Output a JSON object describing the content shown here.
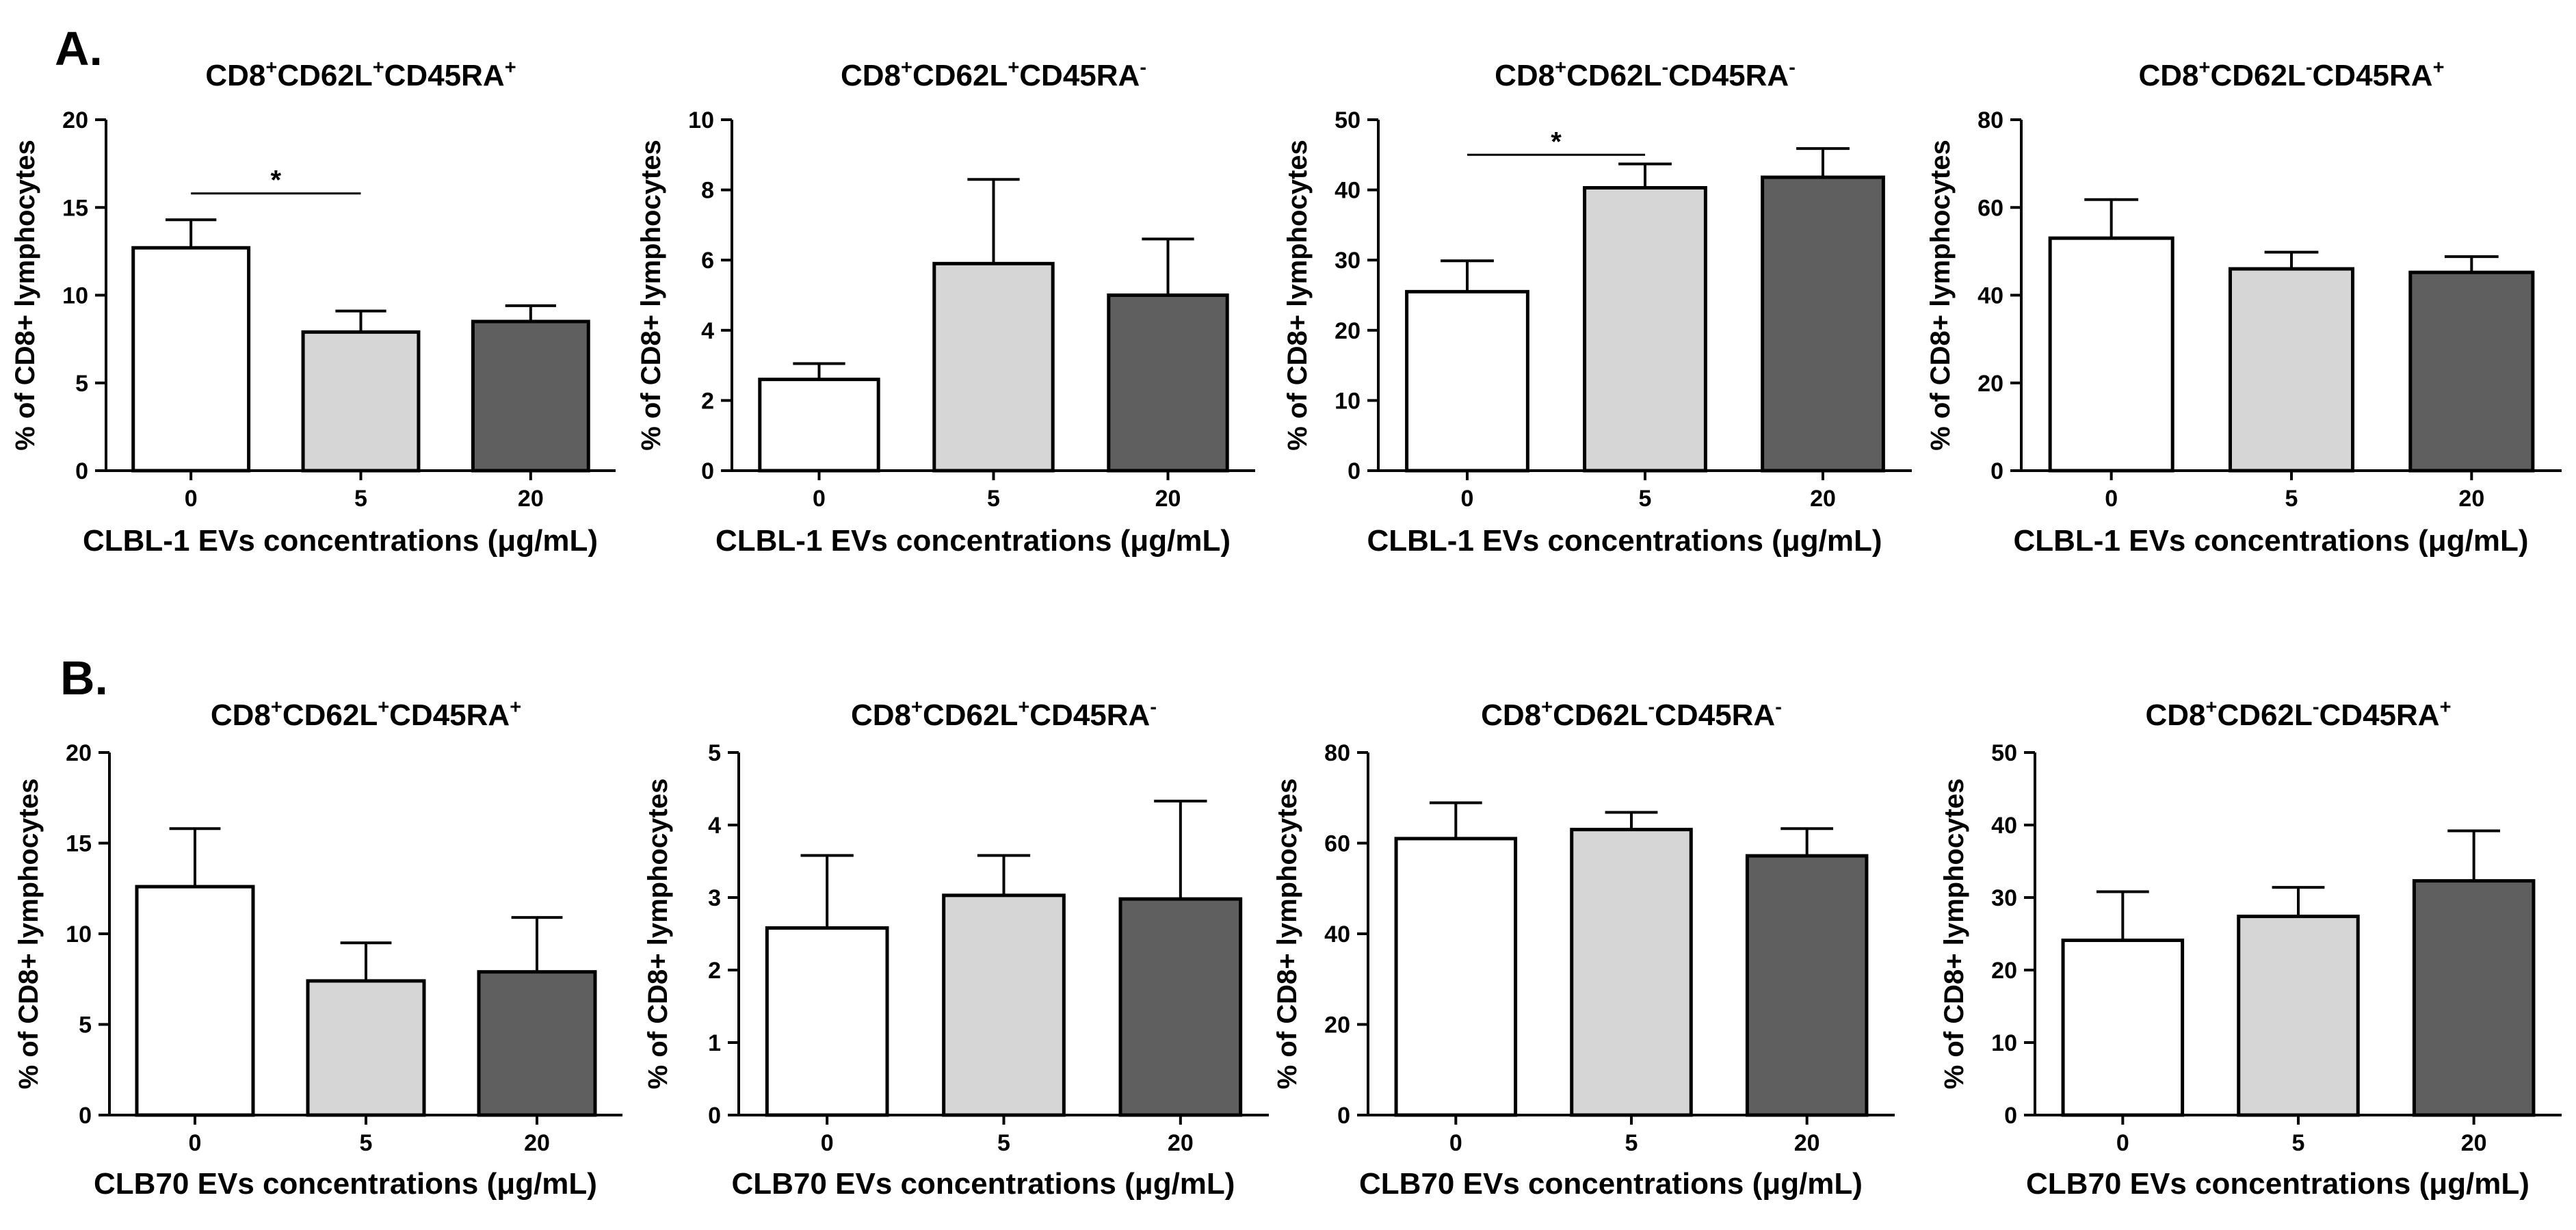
{
  "figure": {
    "panel_labels": [
      "A.",
      "B."
    ],
    "colors": {
      "bar_0": "#ffffff",
      "bar_5": "#d6d6d6",
      "bar_20": "#5f5f5f",
      "ink": "#000000"
    }
  },
  "chart_data": [
    {
      "type": "bar",
      "row": "A",
      "col": 0,
      "title_parts": [
        [
          "CD8",
          "normal"
        ],
        [
          "+",
          "sup"
        ],
        [
          "CD62L",
          "normal"
        ],
        [
          "+",
          "sup"
        ],
        [
          "CD45RA",
          "normal"
        ],
        [
          "+",
          "sup"
        ]
      ],
      "categories": [
        "0",
        "5",
        "20"
      ],
      "values": [
        12.7,
        7.9,
        8.5
      ],
      "errors": [
        1.6,
        1.2,
        0.9
      ],
      "ylim": [
        0,
        20
      ],
      "yticks": [
        0,
        5,
        10,
        15,
        20
      ],
      "ylabel": "% of CD8+ lymphocytes",
      "xlabel": "CLBL-1 EVs concentrations (μg/mL)",
      "significance": [
        {
          "from": 0,
          "to": 1,
          "y": 15.8,
          "label": "*"
        }
      ]
    },
    {
      "type": "bar",
      "row": "A",
      "col": 1,
      "title_parts": [
        [
          "CD8",
          "normal"
        ],
        [
          "+",
          "sup"
        ],
        [
          "CD62L",
          "normal"
        ],
        [
          "+",
          "sup"
        ],
        [
          "CD45RA",
          "normal"
        ],
        [
          "-",
          "sup"
        ]
      ],
      "categories": [
        "0",
        "5",
        "20"
      ],
      "values": [
        2.6,
        5.9,
        5.0
      ],
      "errors": [
        0.45,
        2.4,
        1.6
      ],
      "ylim": [
        0,
        10
      ],
      "yticks": [
        0,
        2,
        4,
        6,
        8,
        10
      ],
      "ylabel": "% of CD8+ lymphocytes",
      "xlabel": "CLBL-1 EVs concentrations (μg/mL)",
      "significance": []
    },
    {
      "type": "bar",
      "row": "A",
      "col": 2,
      "title_parts": [
        [
          "CD8",
          "normal"
        ],
        [
          "+",
          "sup"
        ],
        [
          "CD62L",
          "normal"
        ],
        [
          "-",
          "sup"
        ],
        [
          "CD45RA",
          "normal"
        ],
        [
          "-",
          "sup"
        ]
      ],
      "categories": [
        "0",
        "5",
        "20"
      ],
      "values": [
        25.5,
        40.3,
        41.8
      ],
      "errors": [
        4.4,
        3.4,
        4.1
      ],
      "ylim": [
        0,
        50
      ],
      "yticks": [
        0,
        10,
        20,
        30,
        40,
        50
      ],
      "ylabel": "% of CD8+ lymphocytes",
      "xlabel": "CLBL-1 EVs concentrations (μg/mL)",
      "significance": [
        {
          "from": 0,
          "to": 1,
          "y": 45,
          "label": "*"
        }
      ]
    },
    {
      "type": "bar",
      "row": "A",
      "col": 3,
      "title_parts": [
        [
          "CD8",
          "normal"
        ],
        [
          "+",
          "sup"
        ],
        [
          "CD62L",
          "normal"
        ],
        [
          "-",
          "sup"
        ],
        [
          "CD45RA",
          "normal"
        ],
        [
          "+",
          "sup"
        ]
      ],
      "categories": [
        "0",
        "5",
        "20"
      ],
      "values": [
        53,
        46,
        45.2
      ],
      "errors": [
        8.8,
        3.8,
        3.6
      ],
      "ylim": [
        0,
        80
      ],
      "yticks": [
        0,
        20,
        40,
        60,
        80
      ],
      "ylabel": "% of CD8+ lymphocytes",
      "xlabel": "CLBL-1 EVs concentrations (μg/mL)",
      "significance": []
    },
    {
      "type": "bar",
      "row": "B",
      "col": 0,
      "title_parts": [
        [
          "CD8",
          "normal"
        ],
        [
          "+",
          "sup"
        ],
        [
          "CD62L",
          "normal"
        ],
        [
          "+",
          "sup"
        ],
        [
          "CD45RA",
          "normal"
        ],
        [
          "+",
          "sup"
        ]
      ],
      "categories": [
        "0",
        "5",
        "20"
      ],
      "values": [
        12.6,
        7.4,
        7.9
      ],
      "errors": [
        3.2,
        2.1,
        3.0
      ],
      "ylim": [
        0,
        20
      ],
      "yticks": [
        0,
        5,
        10,
        15,
        20
      ],
      "ylabel": "% of CD8+ lymphocytes",
      "xlabel": "CLB70 EVs concentrations (μg/mL)",
      "significance": []
    },
    {
      "type": "bar",
      "row": "B",
      "col": 1,
      "title_parts": [
        [
          "CD8",
          "normal"
        ],
        [
          "+",
          "sup"
        ],
        [
          "CD62L",
          "normal"
        ],
        [
          "+",
          "sup"
        ],
        [
          "CD45RA",
          "normal"
        ],
        [
          "-",
          "sup"
        ]
      ],
      "categories": [
        "0",
        "5",
        "20"
      ],
      "values": [
        2.58,
        3.03,
        2.98
      ],
      "errors": [
        1.0,
        0.55,
        1.35
      ],
      "ylim": [
        0,
        5
      ],
      "yticks": [
        0,
        1,
        2,
        3,
        4,
        5
      ],
      "ylabel": "% of CD8+ lymphocytes",
      "xlabel": "CLB70 EVs concentrations (μg/mL)",
      "significance": []
    },
    {
      "type": "bar",
      "row": "B",
      "col": 2,
      "title_parts": [
        [
          "CD8",
          "normal"
        ],
        [
          "+",
          "sup"
        ],
        [
          "CD62L",
          "normal"
        ],
        [
          "-",
          "sup"
        ],
        [
          "CD45RA",
          "normal"
        ],
        [
          "-",
          "sup"
        ]
      ],
      "categories": [
        "0",
        "5",
        "20"
      ],
      "values": [
        61,
        63,
        57.2
      ],
      "errors": [
        7.9,
        3.8,
        6.0
      ],
      "ylim": [
        0,
        80
      ],
      "yticks": [
        0,
        20,
        40,
        60,
        80
      ],
      "ylabel": "% of CD8+ lymphocytes",
      "xlabel": "CLB70 EVs concentrations (μg/mL)",
      "significance": []
    },
    {
      "type": "bar",
      "row": "B",
      "col": 3,
      "title_parts": [
        [
          "CD8",
          "normal"
        ],
        [
          "+",
          "sup"
        ],
        [
          "CD62L",
          "normal"
        ],
        [
          "-",
          "sup"
        ],
        [
          "CD45RA",
          "normal"
        ],
        [
          "+",
          "sup"
        ]
      ],
      "categories": [
        "0",
        "5",
        "20"
      ],
      "values": [
        24.1,
        27.4,
        32.3
      ],
      "errors": [
        6.7,
        4.0,
        6.9
      ],
      "ylim": [
        0,
        50
      ],
      "yticks": [
        0,
        10,
        20,
        30,
        40,
        50
      ],
      "ylabel": "% of CD8+ lymphocytes",
      "xlabel": "CLB70 EVs concentrations (μg/mL)",
      "significance": []
    }
  ]
}
